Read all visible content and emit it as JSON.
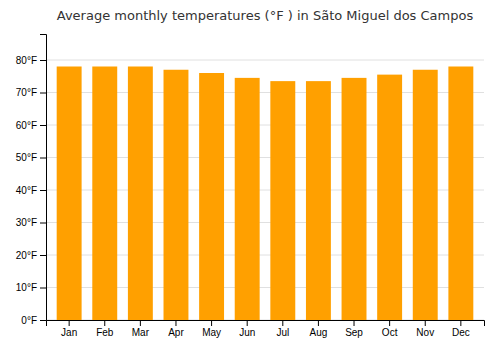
{
  "chart_data": {
    "type": "bar",
    "title": "Average monthly temperatures (°F ) in Sãto Miguel dos Campos",
    "categories": [
      "Jan",
      "Feb",
      "Mar",
      "Apr",
      "May",
      "Jun",
      "Jul",
      "Aug",
      "Sep",
      "Oct",
      "Nov",
      "Dec"
    ],
    "values": [
      78,
      78,
      78,
      77,
      76,
      74.5,
      73.5,
      73.5,
      74.5,
      75.5,
      77,
      78
    ],
    "color": "#FFA000",
    "ylim": [
      0,
      88
    ],
    "yticks": [
      {
        "value": 0,
        "label": "0°F"
      },
      {
        "value": 10,
        "label": "10°F"
      },
      {
        "value": 20,
        "label": "20°F"
      },
      {
        "value": 30,
        "label": "30°F"
      },
      {
        "value": 40,
        "label": "40°F"
      },
      {
        "value": 50,
        "label": "50°F"
      },
      {
        "value": 60,
        "label": "60°F"
      },
      {
        "value": 70,
        "label": "70°F"
      },
      {
        "value": 80,
        "label": "80°F"
      }
    ],
    "grid": true
  }
}
